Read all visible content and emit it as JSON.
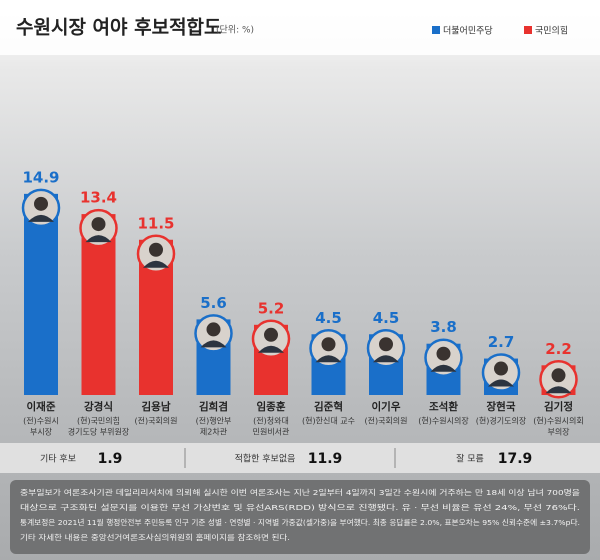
{
  "chart_data": {
    "type": "bar",
    "title": "수원시장 여야 후보적합도",
    "unit": "(단위: %)",
    "categories": [
      "이재준",
      "강경식",
      "김용남",
      "김희겸",
      "임종훈",
      "김준혁",
      "이기우",
      "조석환",
      "장현국",
      "김기정"
    ],
    "descriptions": [
      [
        "(전)수원시",
        "부시장"
      ],
      [
        "(현)국민의힘",
        "경기도당 부위원장"
      ],
      [
        "(전)국회의원"
      ],
      [
        "(전)행안부",
        "제2차관"
      ],
      [
        "(전)청와대",
        "민원비서관"
      ],
      [
        "(현)한신대 교수"
      ],
      [
        "(전)국회의원"
      ],
      [
        "(현)수원시의장"
      ],
      [
        "(현)경기도의장"
      ],
      [
        "(현)수원시의회",
        "부의장"
      ]
    ],
    "series": [
      {
        "name": "더불어민주당",
        "color": "#1a6fc9",
        "values": [
          14.9,
          null,
          null,
          5.6,
          null,
          4.5,
          4.5,
          3.8,
          2.7,
          null
        ]
      },
      {
        "name": "국민의힘",
        "color": "#e8322e",
        "values": [
          null,
          13.4,
          11.5,
          null,
          5.2,
          null,
          null,
          null,
          null,
          2.2
        ]
      }
    ],
    "others": [
      {
        "label": "기타 후보",
        "value": 1.9
      },
      {
        "label": "적합한 후보없음",
        "value": 11.9
      },
      {
        "label": "잘 모름",
        "value": 17.9
      }
    ],
    "note": [
      "중부일보가 여론조사기관 데일리리서치에 의뢰해 실시한 이번 여론조사는 지난 2일부터 4일까지 3일간 수원시에 거주하는 만 18세 이상 남녀 700명을",
      "대상으로 구조화된 설문지를 이용한 무선 가상번호 및 유선ARS(RDD) 방식으로 진행됐다. 유 · 무선 비율은 유선 24%, 무선 76%다.",
      "통계보정은 2021년 11월 행정안전부 주민등록 인구 기준 성별 · 연령별 · 지역별 가중값(셀가중)을 부여했다. 최종 응답률은 2.0%, 표본오차는 95% 신뢰수준에 ±3.7%p다.",
      "기타 자세한 내용은 중앙선거여론조사심의위원회 홈페이지를 참조하면 된다."
    ]
  }
}
